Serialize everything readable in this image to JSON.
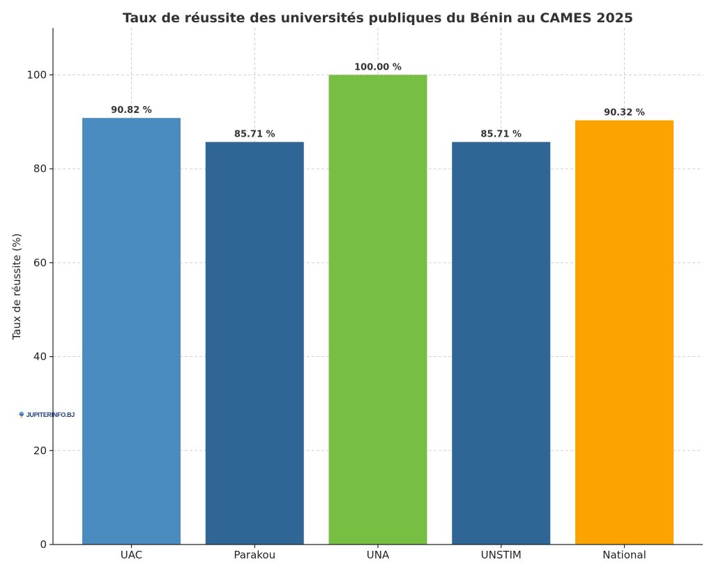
{
  "chart_data": {
    "type": "bar",
    "title": "Taux de réussite des universités publiques du Bénin au CAMES 2025",
    "xlabel": "",
    "ylabel": "Taux de réussite (%)",
    "categories": [
      "UAC",
      "Parakou",
      "UNA",
      "UNSTIM",
      "National"
    ],
    "values": [
      90.82,
      85.71,
      100.0,
      85.71,
      90.32
    ],
    "data_labels": [
      "90.82 %",
      "85.71 %",
      "100.00 %",
      "85.71 %",
      "90.32 %"
    ],
    "colors": [
      "#4a8bc0",
      "#2f6695",
      "#76bf43",
      "#2f6695",
      "#fca300"
    ],
    "ylim": [
      0,
      110
    ],
    "yticks": [
      0,
      20,
      40,
      60,
      80,
      100
    ],
    "grid": true,
    "legend": "none"
  },
  "watermark": {
    "brand": "JUPITERINFO.BJ"
  }
}
